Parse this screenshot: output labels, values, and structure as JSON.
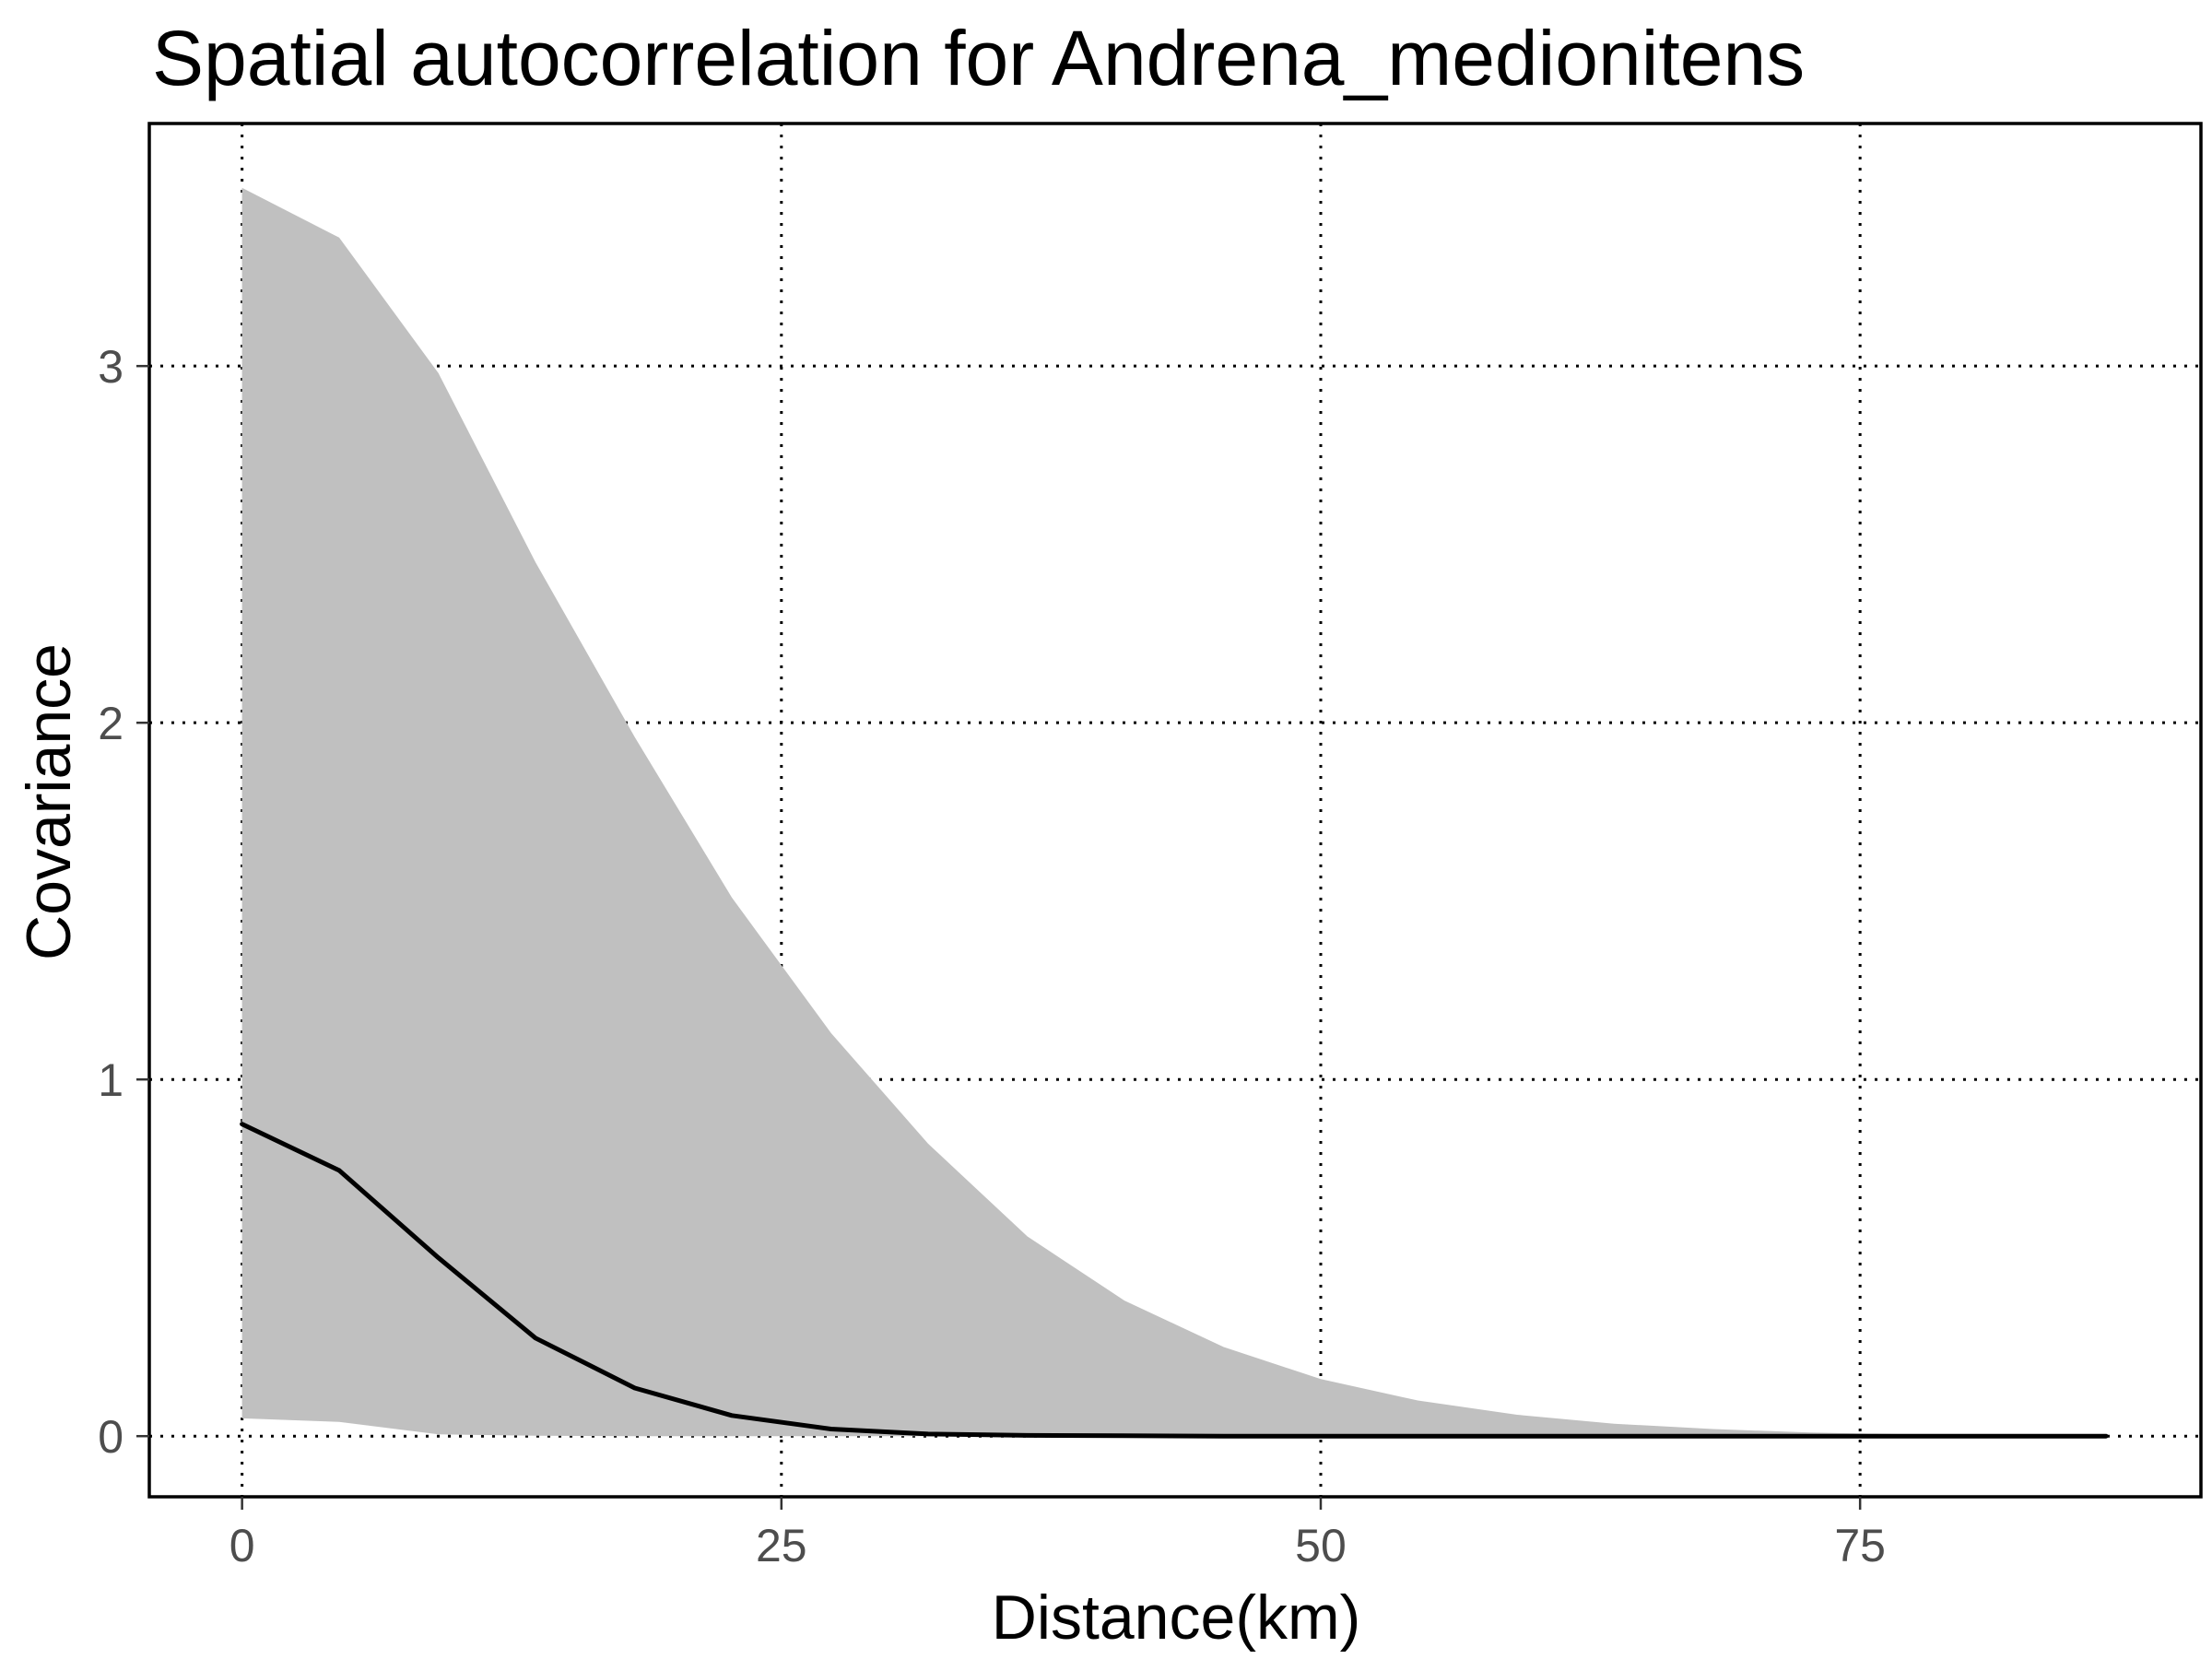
{
  "chart_data": {
    "type": "line",
    "title": "Spatial autocorrelation for Andrena_medionitens",
    "xlabel": "Distance(km)",
    "ylabel": "Covariance",
    "xlim": [
      -4.3,
      90.8
    ],
    "ylim": [
      -0.17,
      3.68
    ],
    "x_ticks": [
      0,
      25,
      50,
      75
    ],
    "y_ticks": [
      0,
      1,
      2,
      3
    ],
    "x_tick_labels": [
      "0",
      "25",
      "50",
      "75"
    ],
    "y_tick_labels": [
      "0",
      "1",
      "2",
      "3"
    ],
    "grid": true,
    "grid_style": "dotted",
    "legend": "none",
    "colors": {
      "line": "#000000",
      "ribbon": "#c0c0c0",
      "panel_border": "#000000"
    },
    "series": [
      {
        "x": [
          0,
          4.5,
          9.1,
          13.6,
          18.2,
          22.7,
          27.3,
          31.8,
          36.4,
          40.9,
          45.5,
          50,
          54.5,
          59.1,
          63.6,
          68.2,
          72.7,
          77.3,
          81.8,
          86.4
        ],
        "values": [
          0.875,
          0.745,
          0.5,
          0.275,
          0.135,
          0.058,
          0.02,
          0.006,
          0.002,
          0.001,
          0,
          0,
          0,
          0,
          0,
          0,
          0,
          0,
          0,
          0
        ],
        "lower": [
          0.05,
          0.04,
          0.005,
          0.001,
          0,
          0,
          0,
          0,
          0,
          0,
          0,
          0,
          0,
          0,
          0,
          0,
          0,
          0,
          0,
          0
        ],
        "upper": [
          3.5,
          3.36,
          2.98,
          2.45,
          1.96,
          1.51,
          1.13,
          0.82,
          0.56,
          0.38,
          0.25,
          0.16,
          0.1,
          0.06,
          0.035,
          0.02,
          0.01,
          0.005,
          0.002,
          0.001
        ]
      }
    ]
  }
}
